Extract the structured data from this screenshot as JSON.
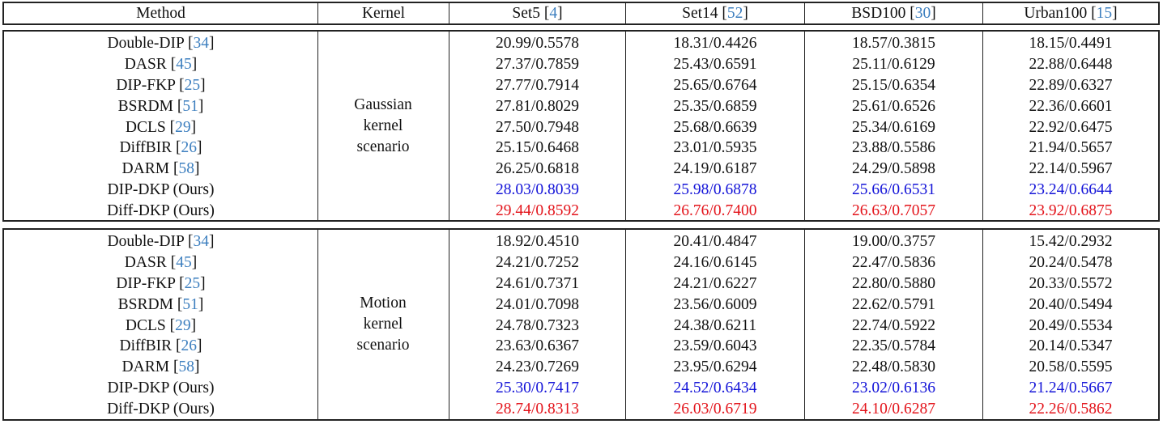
{
  "header": {
    "method": "Method",
    "kernel": "Kernel",
    "datasets": [
      {
        "name": "Set5",
        "cite": "4"
      },
      {
        "name": "Set14",
        "cite": "52"
      },
      {
        "name": "BSD100",
        "cite": "30"
      },
      {
        "name": "Urban100",
        "cite": "15"
      }
    ]
  },
  "colors": {
    "citation": "#3d7fbf",
    "second_best": "#1414d8",
    "best": "#e3141b"
  },
  "sections": [
    {
      "kernel_lines": [
        "Gaussian",
        "kernel",
        "scenario"
      ],
      "rows": [
        {
          "method": "Double-DIP",
          "cite": "34",
          "values": [
            "20.99/0.5578",
            "18.31/0.4426",
            "18.57/0.3815",
            "18.15/0.4491"
          ],
          "highlight": ""
        },
        {
          "method": "DASR",
          "cite": "45",
          "values": [
            "27.37/0.7859",
            "25.43/0.6591",
            "25.11/0.6129",
            "22.88/0.6448"
          ],
          "highlight": ""
        },
        {
          "method": "DIP-FKP",
          "cite": "25",
          "values": [
            "27.77/0.7914",
            "25.65/0.6764",
            "25.15/0.6354",
            "22.89/0.6327"
          ],
          "highlight": ""
        },
        {
          "method": "BSRDM",
          "cite": "51",
          "values": [
            "27.81/0.8029",
            "25.35/0.6859",
            "25.61/0.6526",
            "22.36/0.6601"
          ],
          "highlight": ""
        },
        {
          "method": "DCLS",
          "cite": "29",
          "values": [
            "27.50/0.7948",
            "25.68/0.6639",
            "25.34/0.6169",
            "22.92/0.6475"
          ],
          "highlight": ""
        },
        {
          "method": "DiffBIR",
          "cite": "26",
          "values": [
            "25.15/0.6468",
            "23.01/0.5935",
            "23.88/0.5586",
            "21.94/0.5657"
          ],
          "highlight": ""
        },
        {
          "method": "DARM",
          "cite": "58",
          "values": [
            "26.25/0.6818",
            "24.19/0.6187",
            "24.29/0.5898",
            "22.14/0.5967"
          ],
          "highlight": ""
        },
        {
          "method": "DIP-DKP (Ours)",
          "cite": "",
          "values": [
            "28.03/0.8039",
            "25.98/0.6878",
            "25.66/0.6531",
            "23.24/0.6644"
          ],
          "highlight": "blue"
        },
        {
          "method": "Diff-DKP (Ours)",
          "cite": "",
          "values": [
            "29.44/0.8592",
            "26.76/0.7400",
            "26.63/0.7057",
            "23.92/0.6875"
          ],
          "highlight": "red"
        }
      ]
    },
    {
      "kernel_lines": [
        "Motion",
        "kernel",
        "scenario"
      ],
      "rows": [
        {
          "method": "Double-DIP",
          "cite": "34",
          "values": [
            "18.92/0.4510",
            "20.41/0.4847",
            "19.00/0.3757",
            "15.42/0.2932"
          ],
          "highlight": ""
        },
        {
          "method": "DASR",
          "cite": "45",
          "values": [
            "24.21/0.7252",
            "24.16/0.6145",
            "22.47/0.5836",
            "20.24/0.5478"
          ],
          "highlight": ""
        },
        {
          "method": "DIP-FKP",
          "cite": "25",
          "values": [
            "24.61/0.7371",
            "24.21/0.6227",
            "22.80/0.5880",
            "20.33/0.5572"
          ],
          "highlight": ""
        },
        {
          "method": "BSRDM",
          "cite": "51",
          "values": [
            "24.01/0.7098",
            "23.56/0.6009",
            "22.62/0.5791",
            "20.40/0.5494"
          ],
          "highlight": ""
        },
        {
          "method": "DCLS",
          "cite": "29",
          "values": [
            "24.78/0.7323",
            "24.38/0.6211",
            "22.74/0.5922",
            "20.49/0.5534"
          ],
          "highlight": ""
        },
        {
          "method": "DiffBIR",
          "cite": "26",
          "values": [
            "23.63/0.6367",
            "23.59/0.6043",
            "22.35/0.5784",
            "20.14/0.5347"
          ],
          "highlight": ""
        },
        {
          "method": "DARM",
          "cite": "58",
          "values": [
            "24.23/0.7269",
            "23.95/0.6294",
            "22.48/0.5830",
            "20.58/0.5595"
          ],
          "highlight": ""
        },
        {
          "method": "DIP-DKP (Ours)",
          "cite": "",
          "values": [
            "25.30/0.7417",
            "24.52/0.6434",
            "23.02/0.6136",
            "21.24/0.5667"
          ],
          "highlight": "blue"
        },
        {
          "method": "Diff-DKP (Ours)",
          "cite": "",
          "values": [
            "28.74/0.8313",
            "26.03/0.6719",
            "24.10/0.6287",
            "22.26/0.5862"
          ],
          "highlight": "red"
        }
      ]
    }
  ]
}
